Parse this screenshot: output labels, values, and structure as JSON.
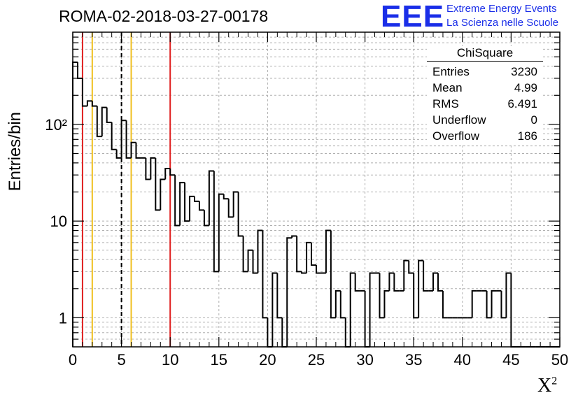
{
  "title": "ROMA-02-2018-03-27-00178",
  "logo": {
    "letters": "EEE",
    "line1": "Extreme Energy Events",
    "line2": "La Scienza nelle Scuole",
    "color": "#1a2ee8"
  },
  "stats": {
    "name": "ChiSquare",
    "rows": [
      {
        "label": "Entries",
        "value": "3230"
      },
      {
        "label": "Mean",
        "value": "4.99"
      },
      {
        "label": "RMS",
        "value": "6.491"
      },
      {
        "label": "Underflow",
        "value": "0"
      },
      {
        "label": "Overflow",
        "value": "186"
      }
    ]
  },
  "axes": {
    "ylabel": "Entries/bin",
    "xlabel_base": "X",
    "xlabel_sup": "2"
  },
  "chart_data": {
    "type": "histogram",
    "title": "ROMA-02-2018-03-27-00178",
    "xlabel": "X²",
    "ylabel": "Entries/bin",
    "yscale": "log",
    "xlim": [
      0,
      50
    ],
    "ylim": [
      0.5,
      900
    ],
    "grid": true,
    "bin_width": 0.5,
    "xticks": [
      0,
      5,
      10,
      15,
      20,
      25,
      30,
      35,
      40,
      45,
      50
    ],
    "yticks": [
      {
        "value": 1,
        "label": "1"
      },
      {
        "value": 10,
        "label": "10"
      },
      {
        "value": 100,
        "label": "10²"
      }
    ],
    "bin_values": [
      440,
      300,
      155,
      175,
      155,
      75,
      150,
      105,
      55,
      45,
      110,
      45,
      65,
      45,
      45,
      27,
      45,
      13,
      27,
      35,
      30,
      9,
      25,
      10,
      18,
      16,
      13,
      9,
      33,
      3,
      19,
      17,
      11,
      20,
      7,
      3,
      5,
      2.9,
      8,
      1,
      0,
      2.9,
      1,
      0,
      6.7,
      7,
      3,
      2.9,
      6,
      3.5,
      2.9,
      2.9,
      8,
      1,
      1.9,
      1,
      0,
      2.9,
      1.9,
      1.9,
      0,
      2.9,
      2.9,
      1,
      1.9,
      2.9,
      1.9,
      1.9,
      3.9,
      2.9,
      1,
      3.9,
      1.9,
      1.9,
      2.9,
      1.9,
      1,
      1,
      1,
      1,
      1,
      1,
      1.9,
      1.9,
      1.9,
      1,
      1.9,
      1.9,
      1,
      2.9,
      0,
      0,
      0,
      0,
      0,
      0,
      0,
      0,
      0,
      0
    ],
    "vertical_lines": [
      {
        "x": 1,
        "color": "#e02020",
        "style": "solid"
      },
      {
        "x": 2,
        "color": "#f0c020",
        "style": "solid"
      },
      {
        "x": 5,
        "color": "#000000",
        "style": "dashed"
      },
      {
        "x": 6,
        "color": "#f0c020",
        "style": "solid"
      },
      {
        "x": 10,
        "color": "#e02020",
        "style": "solid"
      }
    ]
  }
}
